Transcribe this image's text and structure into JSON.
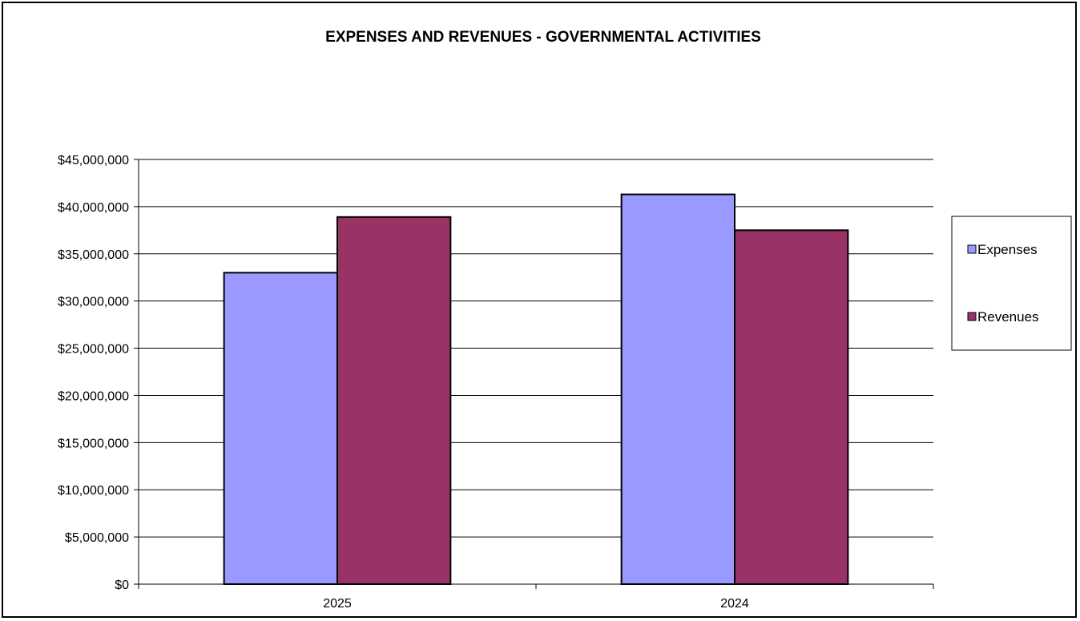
{
  "chart_data": {
    "type": "bar",
    "title": "EXPENSES AND REVENUES - GOVERNMENTAL ACTIVITIES",
    "categories": [
      "2025",
      "2024"
    ],
    "series": [
      {
        "name": "Expenses",
        "values": [
          33000000,
          41300000
        ],
        "color": "#9999ff"
      },
      {
        "name": "Revenues",
        "values": [
          38900000,
          37500000
        ],
        "color": "#993366"
      }
    ],
    "ylim": [
      0,
      45000000
    ],
    "yticks": [
      0,
      5000000,
      10000000,
      15000000,
      20000000,
      25000000,
      30000000,
      35000000,
      40000000,
      45000000
    ],
    "ytick_labels": [
      "$0",
      "$5,000,000",
      "$10,000,000",
      "$15,000,000",
      "$20,000,000",
      "$25,000,000",
      "$30,000,000",
      "$35,000,000",
      "$40,000,000",
      "$45,000,000"
    ],
    "grid": true,
    "legend_position": "right"
  }
}
